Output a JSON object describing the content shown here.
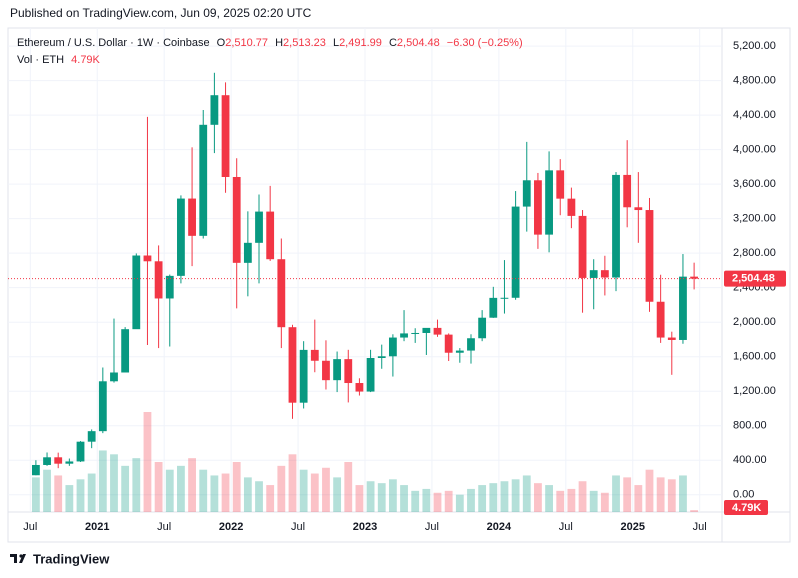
{
  "header": {
    "published": "Published on TradingView.com, Jun 09, 2025 02:20 UTC",
    "brand": "TradingView"
  },
  "chart_data": {
    "type": "candlestick",
    "title": "Ethereum / U.S. Dollar · 1W · Coinbase",
    "legend": {
      "o_label": "O",
      "o": "2,510.77",
      "h_label": "H",
      "h": "2,513.23",
      "l_label": "L",
      "l": "2,491.99",
      "c_label": "C",
      "c": "2,504.48",
      "change": "−6.30 (−0.25%)"
    },
    "volume_title": "Vol · ETH",
    "volume_label": "4.79K",
    "up_color": "#089981",
    "down_color": "#f23645",
    "grid": true,
    "x": [
      "2020-07",
      "2020-08",
      "2020-09",
      "2020-10",
      "2020-11",
      "2020-12",
      "2021-01",
      "2021-02",
      "2021-03",
      "2021-04",
      "2021-05",
      "2021-06",
      "2021-07",
      "2021-08",
      "2021-09",
      "2021-10",
      "2021-11",
      "2021-12",
      "2022-01",
      "2022-02",
      "2022-03",
      "2022-04",
      "2022-05",
      "2022-06",
      "2022-07",
      "2022-08",
      "2022-09",
      "2022-10",
      "2022-11",
      "2022-12",
      "2023-01",
      "2023-02",
      "2023-03",
      "2023-04",
      "2023-05",
      "2023-06",
      "2023-07",
      "2023-08",
      "2023-09",
      "2023-10",
      "2023-11",
      "2023-12",
      "2024-01",
      "2024-02",
      "2024-03",
      "2024-04",
      "2024-05",
      "2024-06",
      "2024-07",
      "2024-08",
      "2024-09",
      "2024-10",
      "2024-11",
      "2024-12",
      "2025-01",
      "2025-02",
      "2025-03",
      "2025-04",
      "2025-05",
      "2025-06"
    ],
    "open": [
      226,
      345,
      434,
      360,
      386,
      615,
      737,
      1315,
      1417,
      1919,
      2773,
      2706,
      2275,
      2537,
      3433,
      3001,
      4288,
      4631,
      3683,
      2688,
      2920,
      3282,
      2730,
      1942,
      1067,
      1679,
      1553,
      1328,
      1572,
      1295,
      1196,
      1585,
      1605,
      1822,
      1870,
      1875,
      1934,
      1856,
      1646,
      1671,
      1814,
      2052,
      2282,
      2283,
      3340,
      3645,
      3015,
      3760,
      3432,
      3232,
      2513,
      2603,
      2518,
      3707,
      3332,
      3300,
      2237,
      1822,
      1794,
      2528
    ],
    "high": [
      400,
      490,
      488,
      420,
      622,
      757,
      1475,
      2042,
      1943,
      2797,
      4380,
      2890,
      2552,
      3470,
      4027,
      4460,
      4891,
      4780,
      3900,
      3285,
      3480,
      3580,
      2970,
      1970,
      1780,
      2030,
      1790,
      1660,
      1680,
      1350,
      1680,
      1740,
      1860,
      2140,
      1930,
      1930,
      2030,
      1870,
      1700,
      1860,
      2140,
      2410,
      2720,
      3520,
      4090,
      3730,
      3980,
      3890,
      3560,
      3300,
      2730,
      2770,
      3740,
      4110,
      3740,
      3440,
      2550,
      1890,
      2790,
      2690
    ],
    "low": [
      226,
      335,
      308,
      335,
      380,
      540,
      714,
      1300,
      1440,
      1932,
      1735,
      1700,
      1718,
      2450,
      2650,
      2970,
      3960,
      3500,
      2160,
      2300,
      2450,
      2710,
      1700,
      880,
      1000,
      1420,
      1220,
      1190,
      1070,
      1150,
      1190,
      1460,
      1370,
      1780,
      1760,
      1620,
      1830,
      1550,
      1530,
      1520,
      1780,
      2050,
      2100,
      2260,
      3050,
      2850,
      2810,
      3240,
      3090,
      2110,
      2150,
      2310,
      2360,
      3100,
      2920,
      2120,
      1760,
      1390,
      1750,
      2380
    ],
    "close": [
      345,
      434,
      360,
      386,
      615,
      737,
      1315,
      1417,
      1919,
      2773,
      2706,
      2275,
      2537,
      3433,
      3001,
      4288,
      4631,
      3683,
      2688,
      2920,
      3282,
      2730,
      1942,
      1067,
      1679,
      1553,
      1328,
      1572,
      1295,
      1196,
      1585,
      1605,
      1822,
      1870,
      1875,
      1934,
      1856,
      1646,
      1671,
      1814,
      2052,
      2282,
      2283,
      3340,
      3645,
      3015,
      3760,
      3432,
      3232,
      2513,
      2603,
      2518,
      3707,
      3332,
      3300,
      2237,
      1822,
      1794,
      2528,
      2504.48
    ],
    "volume": [
      90,
      110,
      95,
      70,
      85,
      100,
      160,
      150,
      120,
      140,
      260,
      130,
      110,
      120,
      140,
      110,
      95,
      100,
      130,
      90,
      80,
      70,
      120,
      150,
      110,
      100,
      115,
      90,
      130,
      70,
      80,
      75,
      85,
      70,
      55,
      60,
      50,
      55,
      45,
      60,
      70,
      75,
      80,
      85,
      95,
      75,
      70,
      55,
      60,
      80,
      55,
      50,
      95,
      90,
      70,
      110,
      90,
      85,
      95,
      4.79
    ],
    "volume_value_labels": {
      "59": "4.79K"
    },
    "last_price": 2504.48,
    "last_price_label": "2,504.48",
    "xlim": [
      "2020-05",
      "2025-09"
    ],
    "xticks": [
      {
        "value": "2020-07",
        "label": "Jul"
      },
      {
        "value": "2021-01",
        "label": "2021"
      },
      {
        "value": "2021-07",
        "label": "Jul"
      },
      {
        "value": "2022-01",
        "label": "2022"
      },
      {
        "value": "2022-07",
        "label": "Jul"
      },
      {
        "value": "2023-01",
        "label": "2023"
      },
      {
        "value": "2023-07",
        "label": "Jul"
      },
      {
        "value": "2024-01",
        "label": "2024"
      },
      {
        "value": "2024-07",
        "label": "Jul"
      },
      {
        "value": "2025-01",
        "label": "2025"
      },
      {
        "value": "2025-07",
        "label": "Jul"
      }
    ],
    "ylim": [
      -200,
      5410
    ],
    "yticks": [
      {
        "value": 0,
        "label": "0.00"
      },
      {
        "value": 400,
        "label": "400.00"
      },
      {
        "value": 800,
        "label": "800.00"
      },
      {
        "value": 1200,
        "label": "1,200.00"
      },
      {
        "value": 1600,
        "label": "1,600.00"
      },
      {
        "value": 2000,
        "label": "2,000.00"
      },
      {
        "value": 2400,
        "label": "2,400.00"
      },
      {
        "value": 2800,
        "label": "2,800.00"
      },
      {
        "value": 3200,
        "label": "3,200.00"
      },
      {
        "value": 3600,
        "label": "3,600.00"
      },
      {
        "value": 4000,
        "label": "4,000.00"
      },
      {
        "value": 4400,
        "label": "4,400.00"
      },
      {
        "value": 4800,
        "label": "4,800.00"
      },
      {
        "value": 5200,
        "label": "5,200.00"
      }
    ]
  }
}
